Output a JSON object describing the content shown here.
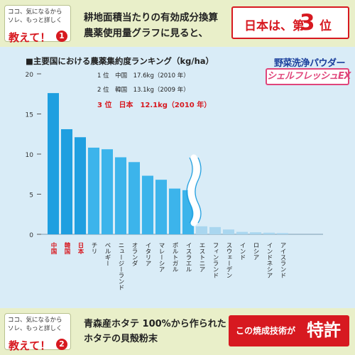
{
  "header": {
    "question_line1": "ココ、気になるから",
    "question_line2": "ソレ、もっと詳しく",
    "question_big": "教えて！",
    "question_number": "1",
    "text_line1": "耕地面積当たりの有効成分換算",
    "text_line2": "農薬使用量グラフに見ると、",
    "result_prefix": "日本は、第",
    "result_number": "3",
    "result_suffix": "位"
  },
  "brand": {
    "line1": "野菜洗浄パウダー",
    "line2": "シェルフレッシュEX"
  },
  "rankings": [
    "1 位　中国　17.6kg（2010 年）",
    "2 位　韓国　13.1kg（2009 年）",
    "3 位　日本　12.1kg（2010 年）"
  ],
  "colors": {
    "highlight_bar": "#1f9fe0",
    "normal_bar": "#3cb4eb",
    "minor_bar": "#a9d6ef",
    "highlight_label": "#d71920",
    "accent_red": "#d71920",
    "header_bg": "#e9efc9",
    "panel_bg": "#d9ecf7"
  },
  "chart_data": {
    "type": "bar",
    "title": "■主要国における農薬集約度ランキング（kg/ha）",
    "ylim": [
      0,
      20
    ],
    "yticks": [
      0,
      5,
      10,
      15,
      20
    ],
    "grid": false,
    "axis_break_after_index": 10,
    "categories": [
      "中国",
      "韓国",
      "日本",
      "チリ",
      "ベルギー",
      "ニュージーランド",
      "オランダ",
      "イタリア",
      "マレーシア",
      "ポルトガル",
      "イスラエル",
      "エストニア",
      "フィンランド",
      "スウェーデン",
      "インド",
      "ロシア",
      "インドネシア",
      "アイスランド"
    ],
    "values": [
      17.6,
      13.1,
      12.1,
      10.8,
      10.6,
      9.6,
      9.0,
      7.3,
      6.8,
      5.7,
      5.5,
      1.0,
      0.9,
      0.6,
      0.3,
      0.25,
      0.2,
      0.15
    ],
    "highlighted_categories": [
      "中国",
      "韓国",
      "日本"
    ]
  },
  "footer": {
    "question_line1": "ココ、気になるから",
    "question_line2": "ソレ、もっと詳しく",
    "question_big": "教えて！",
    "question_number": "2",
    "text_line1": "青森産ホタテ 100%から作られた",
    "text_line2": "ホタテの貝殻粉末",
    "badge_prefix": "この焼成技術が",
    "badge_main": "特許"
  }
}
